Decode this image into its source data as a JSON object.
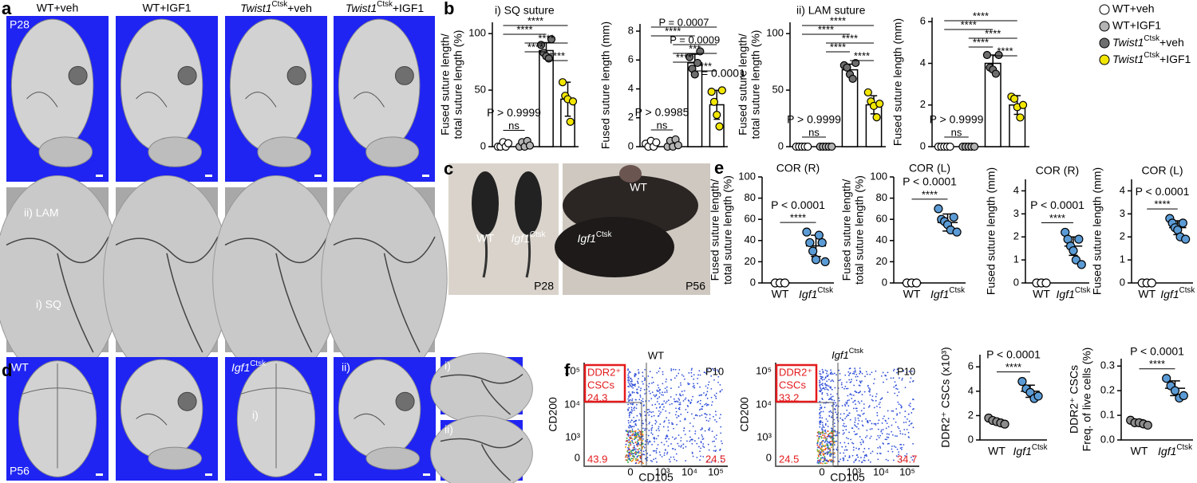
{
  "figure": {
    "panel_labels": [
      "a",
      "b",
      "c",
      "d",
      "e",
      "f"
    ],
    "a": {
      "columns": [
        "WT+veh",
        "WT+IGF1",
        {
          "gene": "Twist1",
          "sup": "Ctsk",
          "rest": "+veh"
        },
        {
          "gene": "Twist1",
          "sup": "Ctsk",
          "rest": "+IGF1"
        }
      ],
      "age": "P28",
      "lam": "ii) LAM",
      "sq": "i) SQ"
    },
    "b": {
      "titles": [
        "i) SQ suture",
        "ii) LAM suture"
      ],
      "legend": [
        {
          "name": "WT+veh",
          "color": "#ffffff"
        },
        {
          "name": "WT+IGF1",
          "color": "#b4b4b4"
        },
        {
          "name": {
            "gene": "Twist1",
            "sup": "Ctsk",
            "rest": "+veh"
          },
          "color": "#6e6e6e"
        },
        {
          "name": {
            "gene": "Twist1",
            "sup": "Ctsk",
            "rest": "+IGF1"
          },
          "color": "#f2e600"
        }
      ],
      "note": "P = 0.0001"
    },
    "c": {
      "wt": "WT",
      "mutant": {
        "gene": "Igf1",
        "sup": "Ctsk"
      },
      "age": "P28",
      "wt2": "WT",
      "mutant2": {
        "gene": "Igf1",
        "sup": "Ctsk"
      },
      "age2": "P56"
    },
    "d": {
      "wt": "WT",
      "mutant": {
        "gene": "Igf1",
        "sup": "Ctsk"
      },
      "age": "P56",
      "i": "i)",
      "ii": "ii)",
      "inset_i": "i)",
      "inset_ii": "ii)"
    },
    "f": {
      "flow": [
        {
          "title": "WT",
          "age": "P10",
          "gate": "DDR2⁺",
          "gate2": "CSCs",
          "gate_pct": "24.3",
          "q_ll": "43.9",
          "q_lr": "24.5"
        },
        {
          "title": {
            "gene": "Igf1",
            "sup": "Ctsk"
          },
          "age": "P10",
          "gate": "DDR2⁺",
          "gate2": "CSCs",
          "gate_pct": "33.2",
          "q_ll": "24.5",
          "q_lr": "34.7"
        }
      ],
      "yticks": [
        "10⁵",
        "10⁴",
        "10³",
        "0"
      ],
      "xticks": [
        "0",
        "10³",
        "10⁴",
        "10⁵"
      ],
      "ylabel": "CD200",
      "xlabel": "CD105"
    }
  },
  "chart_data": [
    {
      "type": "bar",
      "ylabel": [
        "Fused suture length/",
        "total suture length (%)"
      ],
      "ylim": [
        0,
        110
      ],
      "yticks": [
        0,
        50,
        100
      ],
      "values": [
        1.5,
        2,
        85,
        42
      ],
      "errors": [
        2.5,
        4,
        7,
        15
      ],
      "points": [
        [
          0,
          0,
          4,
          0,
          3
        ],
        [
          0,
          4,
          0,
          5,
          1
        ],
        [
          90,
          83,
          80,
          78,
          95
        ],
        [
          57,
          45,
          42,
          22,
          40
        ]
      ],
      "colors": [
        "#ffffff",
        "#b4b4b4",
        "#6e6e6e",
        "#f2e600"
      ],
      "comparisons": [
        {
          "pair": [
            0,
            3
          ],
          "label": "****"
        },
        {
          "pair": [
            0,
            2
          ],
          "label": "****"
        },
        {
          "pair": [
            1,
            3
          ],
          "label": "****"
        },
        {
          "pair": [
            1,
            2
          ],
          "label": "****"
        },
        {
          "pair": [
            2,
            3
          ],
          "label": "****"
        },
        {
          "pair": [
            0,
            1
          ],
          "label": "ns",
          "p": "P > 0.9999"
        }
      ]
    },
    {
      "type": "bar",
      "ylabel": [
        "Fused suture length (mm)"
      ],
      "ylim": [
        0,
        8.5
      ],
      "yticks": [
        0,
        2,
        4,
        6,
        8
      ],
      "values": [
        0.2,
        0.2,
        5.8,
        2.9
      ],
      "errors": [
        0.2,
        0.3,
        0.6,
        1.0
      ],
      "points": [
        [
          0.2,
          0,
          0.4,
          0,
          0.3
        ],
        [
          0,
          0.4,
          0,
          0.5,
          0.1
        ],
        [
          6.2,
          5.4,
          5.0,
          5.8,
          6.6
        ],
        [
          3.8,
          3.1,
          2.2,
          1.4,
          3.9
        ]
      ],
      "colors": [
        "#ffffff",
        "#b4b4b4",
        "#6e6e6e",
        "#f2e600"
      ],
      "comparisons": [
        {
          "pair": [
            0,
            3
          ],
          "label": "P = 0.0007"
        },
        {
          "pair": [
            0,
            2
          ],
          "label": "****"
        },
        {
          "pair": [
            1,
            3
          ],
          "label": "P = 0.0009"
        },
        {
          "pair": [
            1,
            3
          ],
          "label": "***"
        },
        {
          "pair": [
            1,
            2
          ],
          "label": "****"
        },
        {
          "pair": [
            2,
            3
          ],
          "label": "***"
        },
        {
          "pair": [
            0,
            1
          ],
          "label": "ns",
          "p": "P > 0.9985"
        }
      ]
    },
    {
      "type": "bar",
      "ylabel": [
        "Fused suture length/",
        "total suture length (%)"
      ],
      "ylim": [
        0,
        110
      ],
      "yticks": [
        0,
        50,
        100
      ],
      "values": [
        0,
        0,
        68,
        37
      ],
      "errors": [
        0,
        0,
        5,
        8
      ],
      "points": [
        [
          0,
          0,
          0,
          0,
          0
        ],
        [
          0,
          0,
          0,
          0,
          0
        ],
        [
          72,
          70,
          64,
          60,
          74
        ],
        [
          48,
          40,
          36,
          26,
          38
        ]
      ],
      "colors": [
        "#ffffff",
        "#b4b4b4",
        "#6e6e6e",
        "#f2e600"
      ],
      "comparisons": [
        {
          "pair": [
            0,
            3
          ],
          "label": "****"
        },
        {
          "pair": [
            0,
            2
          ],
          "label": "****"
        },
        {
          "pair": [
            1,
            3
          ],
          "label": "****"
        },
        {
          "pair": [
            1,
            2
          ],
          "label": "****"
        },
        {
          "pair": [
            2,
            3
          ],
          "label": "****"
        },
        {
          "pair": [
            0,
            1
          ],
          "label": "ns",
          "p": "P > 0.9999"
        }
      ]
    },
    {
      "type": "bar",
      "ylabel": [
        "Fused suture length (mm)"
      ],
      "ylim": [
        0,
        6.2
      ],
      "yticks": [
        0,
        2,
        4,
        6
      ],
      "values": [
        0,
        0,
        4.0,
        2.0
      ],
      "errors": [
        0,
        0,
        0.4,
        0.45
      ],
      "points": [
        [
          0,
          0,
          0,
          0,
          0
        ],
        [
          0,
          0,
          0,
          0,
          0
        ],
        [
          4.4,
          3.8,
          3.7,
          3.5,
          4.4
        ],
        [
          2.4,
          2.3,
          1.9,
          1.4,
          2.0
        ]
      ],
      "colors": [
        "#ffffff",
        "#b4b4b4",
        "#6e6e6e",
        "#f2e600"
      ],
      "comparisons": [
        {
          "pair": [
            0,
            3
          ],
          "label": "****"
        },
        {
          "pair": [
            0,
            2
          ],
          "label": "****"
        },
        {
          "pair": [
            1,
            3
          ],
          "label": "****"
        },
        {
          "pair": [
            1,
            2
          ],
          "label": "****"
        },
        {
          "pair": [
            2,
            3
          ],
          "label": "****"
        },
        {
          "pair": [
            0,
            1
          ],
          "label": "ns",
          "p": "P > 0.9999"
        }
      ]
    },
    {
      "type": "dot",
      "title": "COR (R)",
      "ylabel": [
        "Fused suture length/",
        "total suture length (%)"
      ],
      "ylim": [
        0,
        100
      ],
      "yticks": [
        0,
        20,
        40,
        60,
        80,
        100
      ],
      "categories": [
        "WT",
        {
          "gene": "Igf1",
          "sup": "Ctsk"
        }
      ],
      "values": [
        0,
        35
      ],
      "errors": [
        0,
        10
      ],
      "points": [
        [
          0,
          0,
          0
        ],
        [
          48,
          38,
          30,
          22,
          45,
          38,
          20
        ]
      ],
      "colors": [
        "#ffffff",
        "#5b9bd5"
      ],
      "comparisons": [
        {
          "pair": [
            0,
            1
          ],
          "label": "****",
          "p": "P < 0.0001"
        }
      ]
    },
    {
      "type": "dot",
      "title": "COR (L)",
      "ylabel": [
        "Fused suture length/",
        "total suture length (%)"
      ],
      "ylim": [
        0,
        100
      ],
      "yticks": [
        0,
        20,
        40,
        60,
        80,
        100
      ],
      "categories": [
        "WT",
        {
          "gene": "Igf1",
          "sup": "Ctsk"
        }
      ],
      "values": [
        0,
        57
      ],
      "errors": [
        0,
        8
      ],
      "points": [
        [
          0,
          0,
          0
        ],
        [
          70,
          60,
          58,
          55,
          50,
          62,
          48
        ]
      ],
      "colors": [
        "#ffffff",
        "#5b9bd5"
      ],
      "comparisons": [
        {
          "pair": [
            0,
            1
          ],
          "label": "****",
          "p": "P < 0.0001"
        }
      ]
    },
    {
      "type": "dot",
      "title": "COR (R)",
      "ylabel": [
        "Fused suture length (mm)"
      ],
      "ylim": [
        0,
        4.5
      ],
      "yticks": [
        0,
        1,
        2,
        3,
        4
      ],
      "categories": [
        "WT",
        {
          "gene": "Igf1",
          "sup": "Ctsk"
        }
      ],
      "values": [
        0,
        1.6
      ],
      "errors": [
        0,
        0.4
      ],
      "points": [
        [
          0,
          0,
          0
        ],
        [
          2.2,
          1.9,
          1.6,
          1.4,
          1.0,
          1.9,
          0.8
        ]
      ],
      "colors": [
        "#ffffff",
        "#5b9bd5"
      ],
      "comparisons": [
        {
          "pair": [
            0,
            1
          ],
          "label": "****",
          "p": "P < 0.0001"
        }
      ]
    },
    {
      "type": "dot",
      "title": "COR (L)",
      "ylabel": [
        "Fused suture length (mm)"
      ],
      "ylim": [
        0,
        4.5
      ],
      "yticks": [
        0,
        1,
        2,
        3,
        4
      ],
      "categories": [
        "WT",
        {
          "gene": "Igf1",
          "sup": "Ctsk"
        }
      ],
      "values": [
        0,
        2.4
      ],
      "errors": [
        0,
        0.3
      ],
      "points": [
        [
          0,
          0,
          0
        ],
        [
          2.8,
          2.6,
          2.4,
          2.3,
          2.0,
          2.6,
          1.9
        ]
      ],
      "colors": [
        "#ffffff",
        "#5b9bd5"
      ],
      "comparisons": [
        {
          "pair": [
            0,
            1
          ],
          "label": "****",
          "p": "P < 0.0001"
        }
      ]
    },
    {
      "type": "dot",
      "ylabel": [
        "DDR2⁺ CSCs (x10³)"
      ],
      "ylim": [
        0,
        7
      ],
      "yticks": [
        0,
        2,
        4,
        6
      ],
      "categories": [
        "WT",
        {
          "gene": "Igf1",
          "sup": "Ctsk"
        }
      ],
      "values": [
        1.5,
        4.0
      ],
      "errors": [
        0.2,
        0.5
      ],
      "points": [
        [
          1.8,
          1.6,
          1.5,
          1.4,
          1.3
        ],
        [
          4.8,
          4.2,
          3.9,
          3.4,
          3.6
        ]
      ],
      "colors": [
        "#8c8c8c",
        "#5b9bd5"
      ],
      "comparisons": [
        {
          "pair": [
            0,
            1
          ],
          "label": "****",
          "p": "P < 0.0001"
        }
      ]
    },
    {
      "type": "dot",
      "ylabel": [
        "DDR2⁺ CSCs",
        "Freq. of live cells (%)"
      ],
      "ylim": [
        0,
        0.33
      ],
      "yticks": [
        {
          "value": 0,
          "label": "0.0"
        },
        0.1,
        0.2,
        0.3
      ],
      "categories": [
        "WT",
        {
          "gene": "Igf1",
          "sup": "Ctsk"
        }
      ],
      "values": [
        0.072,
        0.21
      ],
      "errors": [
        0.01,
        0.03
      ],
      "points": [
        [
          0.08,
          0.07,
          0.07,
          0.065,
          0.06
        ],
        [
          0.25,
          0.22,
          0.2,
          0.17,
          0.18
        ]
      ],
      "colors": [
        "#8c8c8c",
        "#5b9bd5"
      ],
      "comparisons": [
        {
          "pair": [
            0,
            1
          ],
          "label": "****",
          "p": "P < 0.0001"
        }
      ]
    }
  ]
}
